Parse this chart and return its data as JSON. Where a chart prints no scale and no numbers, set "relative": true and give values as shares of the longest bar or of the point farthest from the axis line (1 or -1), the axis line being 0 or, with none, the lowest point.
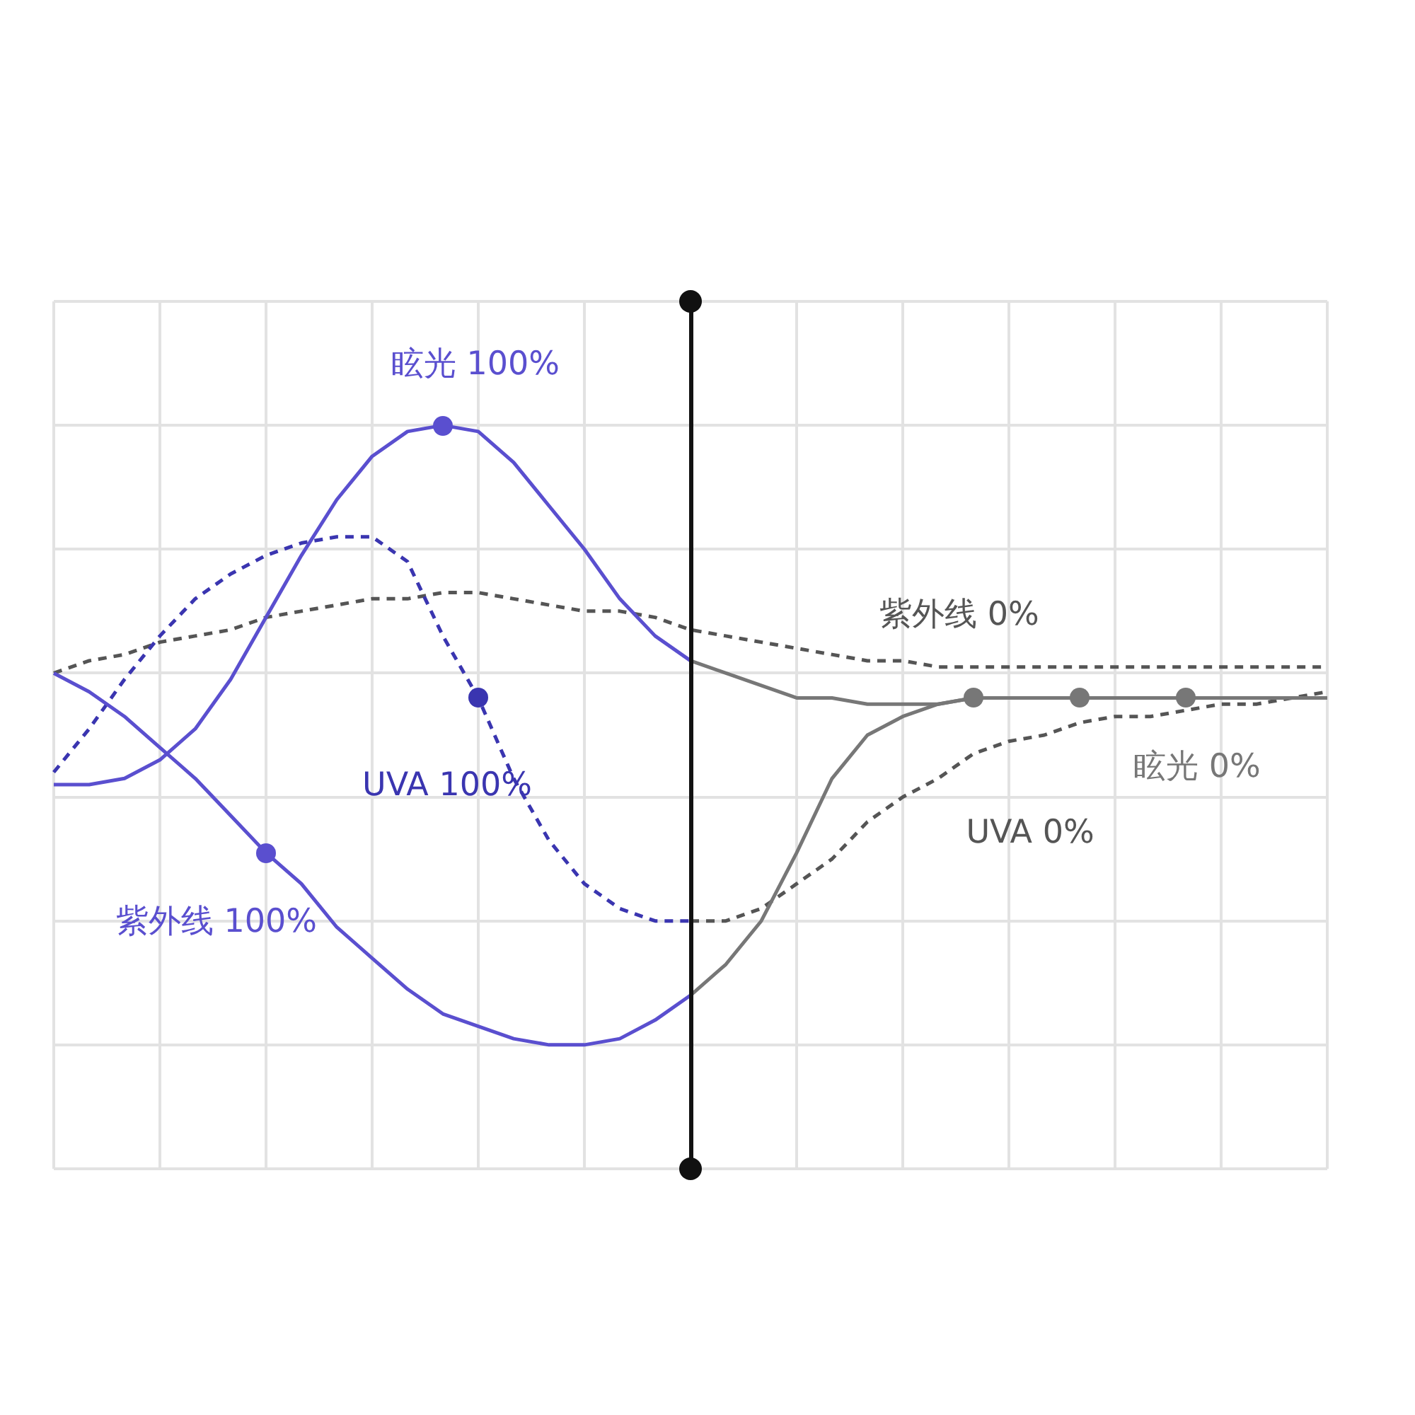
{
  "chart_data": {
    "type": "line",
    "relative": true,
    "grid": true,
    "categories": [
      null,
      null,
      null,
      null,
      null,
      null,
      null,
      null,
      null,
      null,
      null,
      null,
      null,
      null,
      null,
      null,
      null,
      null,
      null,
      null,
      null,
      null,
      null,
      null,
      null,
      null,
      null,
      null,
      null,
      null,
      null,
      null,
      null,
      null,
      null,
      null,
      null
    ],
    "series": [
      {
        "name": "眩光 100%",
        "color": "#5a4fcf",
        "line_style": "solid",
        "values": [
          0.42,
          0.42,
          0.43,
          0.46,
          0.51,
          0.59,
          0.69,
          0.79,
          0.88,
          0.95,
          0.99,
          1,
          0.99,
          0.94,
          0.87,
          0.8,
          0.72,
          0.66,
          0.62,
          null,
          null,
          null,
          null,
          null,
          null,
          null,
          null,
          null,
          null,
          null,
          null,
          null,
          null,
          null,
          null,
          null,
          null
        ]
      },
      {
        "name": "紫外线 100%",
        "color": "#5a4fcf",
        "line_style": "solid",
        "values": [
          0.6,
          0.57,
          0.53,
          0.48,
          0.43,
          0.37,
          0.31,
          0.26,
          0.19,
          0.14,
          0.09,
          0.05,
          0.03,
          0.01,
          0,
          0,
          0.01,
          0.04,
          0.08,
          null,
          null,
          null,
          null,
          null,
          null,
          null,
          null,
          null,
          null,
          null,
          null,
          null,
          null,
          null,
          null,
          null,
          null
        ]
      },
      {
        "name": "UVA 100%",
        "color": "#3a35b0",
        "line_style": "dashed",
        "values": [
          0.44,
          0.51,
          0.59,
          0.66,
          0.72,
          0.76,
          0.79,
          0.81,
          0.82,
          0.82,
          0.78,
          0.66,
          0.56,
          0.43,
          0.33,
          0.26,
          0.22,
          0.2,
          0.2,
          null,
          null,
          null,
          null,
          null,
          null,
          null,
          null,
          null,
          null,
          null,
          null,
          null,
          null,
          null,
          null,
          null,
          null
        ]
      },
      {
        "name": "紫外线 0%",
        "color": "#555555",
        "line_style": "dashed",
        "values": [
          0.6,
          0.62,
          0.63,
          0.65,
          0.66,
          0.67,
          0.69,
          0.7,
          0.71,
          0.72,
          0.72,
          0.73,
          0.73,
          0.72,
          0.71,
          0.7,
          0.7,
          0.69,
          0.67,
          0.66,
          0.65,
          0.64,
          0.63,
          0.62,
          0.62,
          0.61,
          0.61,
          0.61,
          0.61,
          0.61,
          0.61,
          0.61,
          0.61,
          0.61,
          0.61,
          0.61,
          0.61
        ]
      },
      {
        "name": "眩光 0%",
        "color": "#777777",
        "line_style": "solid",
        "values": [
          null,
          null,
          null,
          null,
          null,
          null,
          null,
          null,
          null,
          null,
          null,
          null,
          null,
          null,
          null,
          null,
          null,
          null,
          0.62,
          0.6,
          0.58,
          0.56,
          0.56,
          0.55,
          0.55,
          0.55,
          0.56,
          0.56,
          0.56,
          0.56,
          0.56,
          0.56,
          0.56,
          0.56,
          0.56,
          0.56,
          0.56
        ]
      },
      {
        "color": "#777777",
        "line_style": "solid",
        "values": [
          null,
          null,
          null,
          null,
          null,
          null,
          null,
          null,
          null,
          null,
          null,
          null,
          null,
          null,
          null,
          null,
          null,
          null,
          0.08,
          0.13,
          0.2,
          0.31,
          0.43,
          0.5,
          0.53,
          0.55,
          0.56,
          0.56,
          0.56,
          0.56,
          0.56,
          0.56,
          0.56,
          0.56,
          0.56,
          0.56,
          0.56
        ]
      },
      {
        "name": "UVA 0%",
        "color": "#555555",
        "line_style": "dashed",
        "values": [
          null,
          null,
          null,
          null,
          null,
          null,
          null,
          null,
          null,
          null,
          null,
          null,
          null,
          null,
          null,
          null,
          null,
          null,
          0.2,
          0.2,
          0.22,
          0.26,
          0.3,
          0.36,
          0.4,
          0.43,
          0.47,
          0.49,
          0.5,
          0.52,
          0.53,
          0.53,
          0.54,
          0.55,
          0.55,
          0.56,
          0.57
        ]
      }
    ]
  }
}
